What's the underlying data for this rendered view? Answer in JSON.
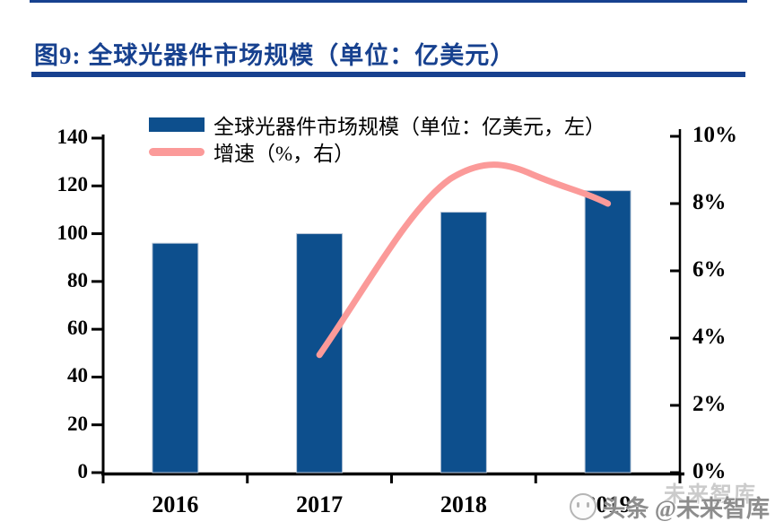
{
  "header": {
    "title": "图9: 全球光器件市场规模（单位：亿美元）"
  },
  "colors": {
    "accent_navy": "#17418f",
    "bar_blue": "#0d4f8d",
    "line_pink": "#fb9a99",
    "axis_black": "#000000",
    "watermark_gray": "#8d8d8d"
  },
  "legend": {
    "items": [
      {
        "label": "全球光器件市场规模（单位：亿美元，左）",
        "swatch": "bar"
      },
      {
        "label": "增速（%，右）",
        "swatch": "line"
      }
    ]
  },
  "watermark": {
    "ghost": "未来智库",
    "main": "头条 @未来智库"
  },
  "chart_data": {
    "type": "bar+line",
    "title": "全球光器件市场规模",
    "categories": [
      "2016",
      "2017",
      "2018",
      "2019"
    ],
    "series": [
      {
        "name": "全球光器件市场规模（单位：亿美元，左）",
        "type": "bar",
        "axis": "left",
        "values": [
          96,
          100,
          109,
          118
        ]
      },
      {
        "name": "增速（%，右）",
        "type": "line",
        "axis": "right",
        "x": [
          "2017",
          "2018",
          "2019"
        ],
        "values": [
          3.5,
          9.0,
          8.0
        ]
      }
    ],
    "left_axis": {
      "min": 0,
      "max": 140,
      "step": 20,
      "ticks": [
        "140",
        "120",
        "100",
        "80",
        "60",
        "40",
        "20",
        "0"
      ]
    },
    "right_axis": {
      "min": 0,
      "max": 10,
      "step": 2,
      "ticks": [
        "10%",
        "8%",
        "6%",
        "4%",
        "2%",
        "0%"
      ]
    },
    "legend_position": "top",
    "grid": false
  }
}
